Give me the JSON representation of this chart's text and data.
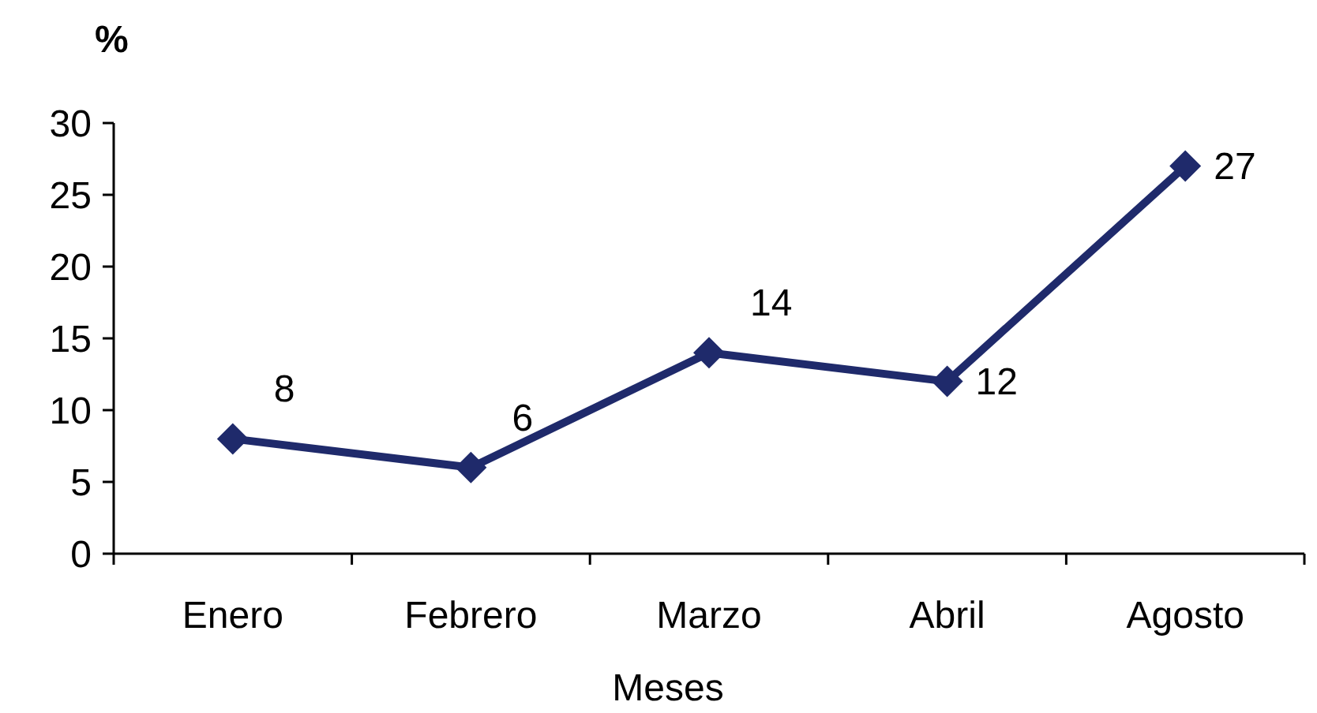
{
  "chart_data": {
    "type": "line",
    "ylabel": "%",
    "xlabel": "Meses",
    "categories": [
      "Enero",
      "Febrero",
      "Marzo",
      "Abril",
      "Agosto"
    ],
    "series": [
      {
        "color": "#1f2a6b",
        "values": [
          8,
          6,
          14,
          12,
          27
        ]
      }
    ],
    "ylim": [
      0,
      30
    ],
    "yticks": [
      0,
      5,
      10,
      15,
      20,
      25,
      30
    ],
    "grid": false,
    "marker": "diamond",
    "line_style": "solid",
    "data_labels": true
  }
}
